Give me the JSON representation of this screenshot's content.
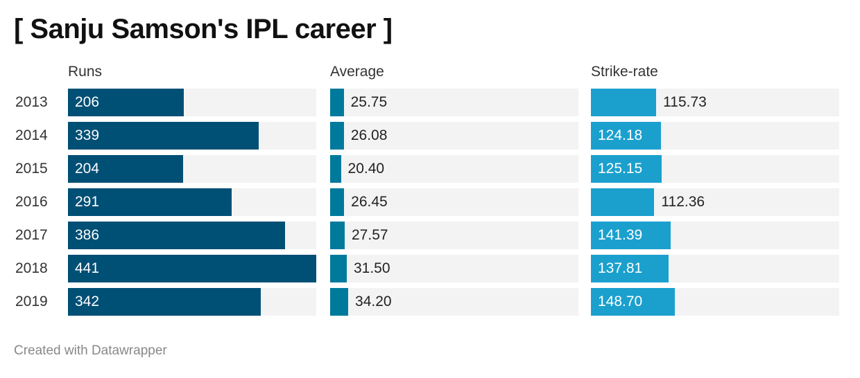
{
  "title": "[ Sanju Samson's IPL career ]",
  "footer": "Created with Datawrapper",
  "chart_data": {
    "type": "bar",
    "orientation": "horizontal",
    "categories": [
      "2013",
      "2014",
      "2015",
      "2016",
      "2017",
      "2018",
      "2019"
    ],
    "series": [
      {
        "name": "Runs",
        "values": [
          206,
          339,
          204,
          291,
          386,
          441,
          342
        ],
        "labels": [
          "206",
          "339",
          "204",
          "291",
          "386",
          "441",
          "342"
        ],
        "color": "#004f75",
        "xlim": [
          0,
          441
        ]
      },
      {
        "name": "Average",
        "values": [
          25.75,
          26.08,
          20.4,
          26.45,
          27.57,
          31.5,
          34.2
        ],
        "labels": [
          "25.75",
          "26.08",
          "20.40",
          "26.45",
          "27.57",
          "31.50",
          "34.20"
        ],
        "color": "#007a9c",
        "xlim": [
          0,
          470
        ]
      },
      {
        "name": "Strike-rate",
        "values": [
          115.73,
          124.18,
          125.15,
          112.36,
          141.39,
          137.81,
          148.7
        ],
        "labels": [
          "115.73",
          "124.18",
          "125.15",
          "112.36",
          "141.39",
          "137.81",
          "148.70"
        ],
        "color": "#1ba0ce",
        "xlim": [
          0,
          440
        ]
      }
    ],
    "grid": false,
    "legend": "none"
  }
}
